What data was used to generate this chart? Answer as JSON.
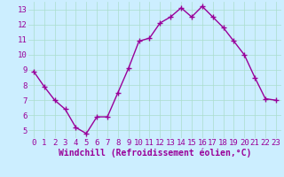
{
  "x": [
    0,
    1,
    2,
    3,
    4,
    5,
    6,
    7,
    8,
    9,
    10,
    11,
    12,
    13,
    14,
    15,
    16,
    17,
    18,
    19,
    20,
    21,
    22,
    23
  ],
  "y": [
    8.9,
    7.9,
    7.0,
    6.4,
    5.2,
    4.8,
    5.9,
    5.9,
    7.5,
    9.1,
    10.9,
    11.1,
    12.1,
    12.5,
    13.1,
    12.5,
    13.2,
    12.5,
    11.8,
    10.9,
    10.0,
    8.5,
    7.1,
    7.0
  ],
  "line_color": "#990099",
  "marker": "+",
  "marker_size": 4,
  "marker_linewidth": 1.0,
  "bg_color": "#cceeff",
  "grid_color": "#aaddcc",
  "xlabel": "Windchill (Refroidissement éolien,°C)",
  "xlabel_color": "#990099",
  "tick_color": "#990099",
  "yticks": [
    5,
    6,
    7,
    8,
    9,
    10,
    11,
    12,
    13
  ],
  "xticks": [
    0,
    1,
    2,
    3,
    4,
    5,
    6,
    7,
    8,
    9,
    10,
    11,
    12,
    13,
    14,
    15,
    16,
    17,
    18,
    19,
    20,
    21,
    22,
    23
  ],
  "ylim": [
    4.5,
    13.5
  ],
  "xlim": [
    -0.5,
    23.5
  ],
  "tick_fontsize": 6.5,
  "xlabel_fontsize": 7.0,
  "linewidth": 1.0
}
